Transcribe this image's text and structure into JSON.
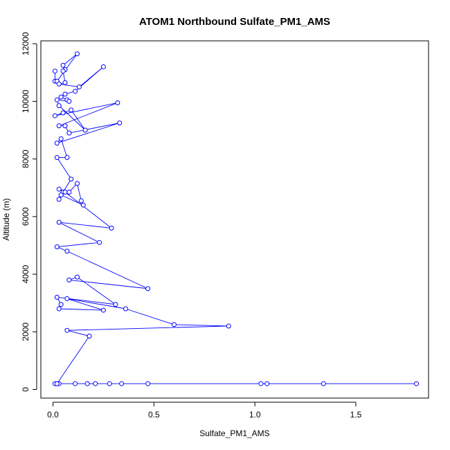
{
  "chart_data": {
    "type": "line",
    "title": "ATOM1 Northbound Sulfate_PM1_AMS",
    "xlabel": "Sulfate_PM1_AMS",
    "ylabel": "Altitude (m)",
    "xlim": [
      -0.06,
      1.86
    ],
    "ylim": [
      -300,
      12100
    ],
    "xticks": [
      0.0,
      0.5,
      1.0,
      1.5
    ],
    "xtick_labels": [
      "0.0",
      "0.5",
      "1.0",
      "1.5"
    ],
    "yticks": [
      0,
      2000,
      4000,
      6000,
      8000,
      10000,
      12000
    ],
    "ytick_labels": [
      "0",
      "2000",
      "4000",
      "6000",
      "8000",
      "10000",
      "12000"
    ],
    "grid": false,
    "colors": {
      "series": "#0000ff",
      "axis": "#000000",
      "background": "#ffffff"
    },
    "marker": "open-circle",
    "series": [
      {
        "x": [
          0.01,
          0.01,
          0.02,
          0.12,
          0.05,
          0.06,
          0.05,
          0.06,
          0.03,
          0.13,
          0.25,
          0.11,
          0.06,
          0.04,
          0.07,
          0.08,
          0.02,
          0.03,
          0.16,
          0.09,
          0.05,
          0.01,
          0.32,
          0.03,
          0.06,
          0.08,
          0.33,
          0.02,
          0.04,
          0.07,
          0.02,
          0.09,
          0.05,
          0.03,
          0.08,
          0.12,
          0.14,
          0.15,
          0.04,
          0.03,
          0.06,
          0.29,
          0.03,
          0.23,
          0.02,
          0.07,
          0.47,
          0.08,
          0.12,
          0.31,
          0.02,
          0.04,
          0.03,
          0.25,
          0.07,
          0.36,
          0.6,
          0.87,
          0.07,
          0.18,
          0.02,
          0.01,
          0.03,
          0.02,
          0.11,
          0.17,
          0.21,
          0.28,
          0.34,
          0.47,
          1.03,
          1.06,
          1.34,
          1.8
        ],
        "y": [
          11050,
          10700,
          10700,
          11650,
          11250,
          11100,
          11050,
          10650,
          10600,
          10500,
          11200,
          10350,
          10250,
          10150,
          10050,
          10000,
          10050,
          9850,
          9000,
          9700,
          9600,
          9500,
          9950,
          9150,
          9150,
          8900,
          9250,
          8550,
          8700,
          8050,
          8050,
          7300,
          6850,
          6950,
          6850,
          7150,
          6550,
          6400,
          6750,
          6600,
          6850,
          5600,
          5800,
          5100,
          4950,
          4800,
          3500,
          3800,
          3900,
          2950,
          3200,
          2950,
          2800,
          2750,
          3150,
          2800,
          2250,
          2200,
          2050,
          1850,
          200,
          200,
          200,
          200,
          200,
          200,
          200,
          200,
          200,
          200,
          200,
          200,
          200,
          200
        ]
      }
    ]
  }
}
